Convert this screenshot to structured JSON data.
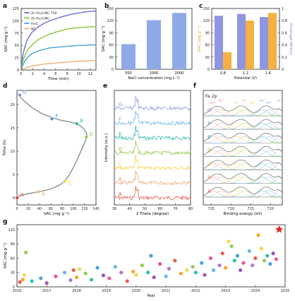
{
  "panels": {
    "a": "a",
    "b": "b",
    "c": "c",
    "d": "d",
    "e": "e",
    "f": "f",
    "g": "g"
  },
  "chart_data": [
    {
      "id": "a",
      "type": "line",
      "xlabel": "Time (min)",
      "ylabel": "SAC (mg g⁻¹)",
      "xlim": [
        0,
        13
      ],
      "ylim": [
        0,
        125
      ],
      "xticks": [
        0,
        2,
        4,
        6,
        8,
        10,
        12
      ],
      "yticks": [
        0,
        25,
        50,
        75,
        100,
        125
      ],
      "legend_position": "top-left",
      "series": [
        {
          "name": "Zn-Fe₂C/NC-750",
          "color": "#6e6edc",
          "x": [
            0,
            0.3,
            0.6,
            1,
            1.5,
            2,
            3,
            4,
            5,
            6,
            7,
            8,
            9,
            10,
            11,
            12,
            13
          ],
          "y": [
            0,
            30,
            45,
            60,
            70,
            78,
            88,
            95,
            100,
            104,
            108,
            111,
            114,
            116,
            118,
            119,
            120
          ]
        },
        {
          "name": "Zn-Fe₂C/NC",
          "color": "#8cc63f",
          "x": [
            0,
            0.3,
            0.6,
            1,
            1.5,
            2,
            3,
            4,
            5,
            6,
            7,
            8,
            9,
            10,
            11,
            12,
            13
          ],
          "y": [
            0,
            18,
            28,
            38,
            46,
            52,
            62,
            68,
            73,
            77,
            80,
            83,
            85,
            86,
            87,
            88,
            88
          ]
        },
        {
          "name": "Fe₂C",
          "color": "#4fa6d8",
          "x": [
            0,
            0.3,
            0.6,
            1,
            1.5,
            2,
            3,
            4,
            5,
            6,
            7,
            8,
            9,
            10,
            11,
            12,
            13
          ],
          "y": [
            0,
            10,
            17,
            24,
            30,
            34,
            39,
            42,
            45,
            46,
            47,
            48,
            49,
            50,
            50,
            51,
            51
          ]
        },
        {
          "name": "NC",
          "color": "#f0b27a",
          "x": [
            0,
            0.5,
            1,
            2,
            3,
            4,
            5,
            6,
            7,
            8,
            9,
            10,
            11,
            12,
            13
          ],
          "y": [
            0,
            3,
            5,
            8,
            10,
            12,
            13,
            14,
            15,
            16,
            17,
            18,
            18,
            19,
            19
          ]
        }
      ]
    },
    {
      "id": "b",
      "type": "bar",
      "xlabel": "NaCl concentration (mg L⁻¹)",
      "ylabel": "SAC (mg g⁻¹)",
      "ylim": [
        0,
        150
      ],
      "yticks": [
        0,
        30,
        60,
        90,
        120,
        150
      ],
      "categories": [
        "500",
        "1000",
        "2000"
      ],
      "values": [
        62,
        121,
        139
      ],
      "color": "#8fa9e8"
    },
    {
      "id": "c",
      "type": "bar",
      "xlabel": "Potential (V)",
      "ylabel": "SAC (mg g⁻¹)",
      "ylabel_right": "Charge efficiency",
      "ylim": [
        0,
        150
      ],
      "ylim_right": [
        0,
        1.0
      ],
      "yticks": [
        0,
        30,
        60,
        90,
        120,
        150
      ],
      "yticks_right": [
        0.0,
        0.2,
        0.4,
        0.6,
        0.8,
        1.0
      ],
      "categories": [
        "0.8",
        "1.2",
        "1.6"
      ],
      "series": [
        {
          "name": "Charge efficiency",
          "color": "#8f96e0",
          "axis": "right",
          "values": [
            0.88,
            0.91,
            0.86
          ]
        },
        {
          "name": "SAC",
          "color": "#f5b041",
          "axis": "left",
          "values": [
            42,
            120,
            139
          ]
        }
      ]
    },
    {
      "id": "d",
      "type": "line",
      "xlabel": "SAC (mg g⁻¹)",
      "ylabel": "Time (h)",
      "xlim": [
        0,
        140
      ],
      "ylim": [
        -1.5,
        23
      ],
      "xticks": [
        0,
        20,
        40,
        60,
        80,
        100,
        120,
        140
      ],
      "yticks": [
        0,
        5,
        10,
        15,
        20
      ],
      "color": "#8a8f92",
      "x": [
        0,
        5,
        20,
        38,
        60,
        75,
        85,
        92,
        100,
        108,
        115,
        120,
        123,
        124,
        122,
        115,
        105,
        92,
        78,
        62,
        45,
        28,
        14,
        6,
        2
      ],
      "y": [
        0,
        0.5,
        0.9,
        1.3,
        1.9,
        2.7,
        3.6,
        4.8,
        6.5,
        8.5,
        10.5,
        11.8,
        12.8,
        13.4,
        14.2,
        15.2,
        15.9,
        16.3,
        16.6,
        17.2,
        18.0,
        19.2,
        20.6,
        21.6,
        22.3
      ],
      "markers": [
        {
          "label": "A",
          "x": 0,
          "y": 0,
          "color": "#e74c3c"
        },
        {
          "label": "B",
          "x": 38,
          "y": 1.3,
          "color": "#f0b27a"
        },
        {
          "label": "C",
          "x": 85,
          "y": 3.6,
          "color": "#f4d03f"
        },
        {
          "label": "D",
          "x": 123,
          "y": 13.0,
          "color": "#8cc63f"
        },
        {
          "label": "E",
          "x": 106,
          "y": 15.9,
          "color": "#1abc9c"
        },
        {
          "label": "F",
          "x": 62,
          "y": 16.9,
          "color": "#3498db"
        },
        {
          "label": "G",
          "x": 5,
          "y": 22.0,
          "color": "#7f8fd8"
        }
      ]
    },
    {
      "id": "e",
      "type": "line",
      "xlabel": "2 Theta (degree)",
      "ylabel": "Intensity (a.u.)",
      "xlim": [
        30,
        80
      ],
      "xticks": [
        30,
        40,
        50,
        60,
        70,
        80
      ],
      "series": [
        {
          "name": "A",
          "color": "#e74c3c"
        },
        {
          "name": "B",
          "color": "#f0a070"
        },
        {
          "name": "C",
          "color": "#f4d03f"
        },
        {
          "name": "D",
          "color": "#8cc63f"
        },
        {
          "name": "E",
          "color": "#20b2aa"
        },
        {
          "name": "F",
          "color": "#5dade2"
        },
        {
          "name": "G",
          "color": "#8f96e0"
        }
      ]
    },
    {
      "id": "f",
      "type": "line",
      "title": "Fe 2p",
      "xlabel": "Binding energy (eV)",
      "xlim": [
        727,
        707
      ],
      "xticks": [
        725,
        720,
        715,
        710
      ],
      "peak_labels": [
        "Fe³⁺",
        "Fe²⁺",
        "Fe³⁺",
        "Fe²⁺",
        "sat.",
        "Fe³⁺",
        "Fe²⁺",
        "Fe⁰"
      ],
      "series": [
        {
          "name": "A",
          "color": "#e74c3c"
        },
        {
          "name": "B",
          "color": "#f0a070"
        },
        {
          "name": "C",
          "color": "#f4d03f"
        },
        {
          "name": "D",
          "color": "#8cc63f"
        },
        {
          "name": "E",
          "color": "#20b2aa"
        },
        {
          "name": "F",
          "color": "#5dade2"
        },
        {
          "name": "G",
          "color": "#8f96e0"
        }
      ]
    },
    {
      "id": "g",
      "type": "scatter",
      "xlabel": "Year",
      "ylabel": "SAC (mg g⁻¹)",
      "xlim": [
        2016,
        2025
      ],
      "ylim": [
        0,
        130
      ],
      "xticks": [
        2016,
        2017,
        2018,
        2019,
        2020,
        2021,
        2022,
        2023,
        2024,
        2025
      ],
      "yticks": [
        0,
        30,
        60,
        90,
        120
      ],
      "highlight": {
        "x": 2024.8,
        "y": 120,
        "color": "#e02020"
      },
      "points": [
        [
          2016.1,
          10
        ],
        [
          2016.2,
          15
        ],
        [
          2016.25,
          25
        ],
        [
          2016.3,
          72
        ],
        [
          2016.5,
          12
        ],
        [
          2016.8,
          18
        ],
        [
          2017.0,
          8
        ],
        [
          2017.3,
          22
        ],
        [
          2017.6,
          30
        ],
        [
          2017.8,
          14
        ],
        [
          2017.9,
          35
        ],
        [
          2018.0,
          20
        ],
        [
          2018.1,
          37
        ],
        [
          2018.3,
          28
        ],
        [
          2018.5,
          15
        ],
        [
          2018.7,
          40
        ],
        [
          2018.9,
          24
        ],
        [
          2019.1,
          18
        ],
        [
          2019.3,
          42
        ],
        [
          2019.5,
          30
        ],
        [
          2019.7,
          12
        ],
        [
          2019.9,
          32
        ],
        [
          2020.0,
          25
        ],
        [
          2020.2,
          45
        ],
        [
          2020.4,
          30
        ],
        [
          2020.5,
          65
        ],
        [
          2020.6,
          20
        ],
        [
          2020.8,
          48
        ],
        [
          2021.0,
          22
        ],
        [
          2021.1,
          38
        ],
        [
          2021.3,
          55
        ],
        [
          2021.5,
          28
        ],
        [
          2021.7,
          35
        ],
        [
          2021.9,
          42
        ],
        [
          2022.0,
          30
        ],
        [
          2022.2,
          50
        ],
        [
          2022.3,
          25
        ],
        [
          2022.5,
          60
        ],
        [
          2022.6,
          35
        ],
        [
          2022.8,
          45
        ],
        [
          2022.9,
          70
        ],
        [
          2023.0,
          40
        ],
        [
          2023.1,
          95
        ],
        [
          2023.2,
          85
        ],
        [
          2023.3,
          55
        ],
        [
          2023.4,
          65
        ],
        [
          2023.5,
          35
        ],
        [
          2023.6,
          50
        ],
        [
          2023.8,
          75
        ],
        [
          2023.9,
          45
        ],
        [
          2024.0,
          60
        ],
        [
          2024.1,
          108
        ],
        [
          2024.2,
          80
        ],
        [
          2024.3,
          55
        ],
        [
          2024.4,
          65
        ],
        [
          2024.5,
          48
        ],
        [
          2024.6,
          70
        ],
        [
          2024.7,
          58
        ]
      ]
    }
  ]
}
